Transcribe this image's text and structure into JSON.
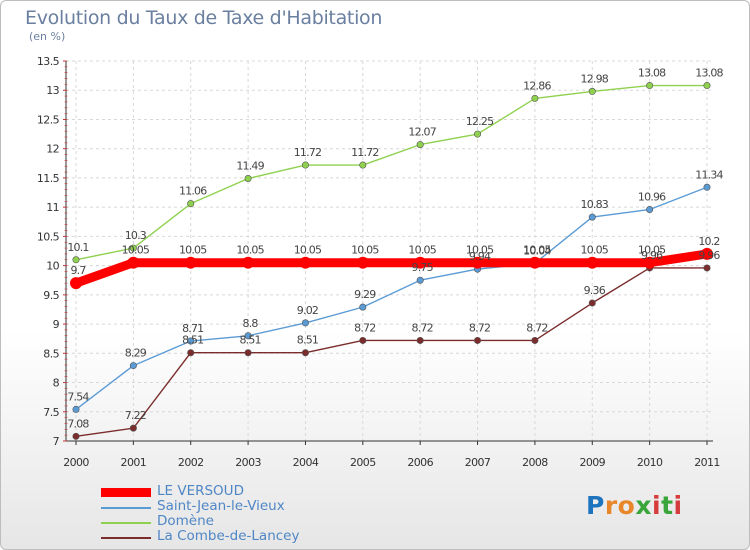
{
  "title": "Evolution du Taux de Taxe d'Habitation",
  "subtitle": "(en %)",
  "logo": {
    "letters": [
      "P",
      "r",
      "o",
      "x",
      "i",
      "t",
      "i"
    ],
    "colors": [
      "#1e73be",
      "#e8862b",
      "#e8862b",
      "#3aa53a",
      "#d63c3c",
      "#3aa53a",
      "#d63c3c"
    ]
  },
  "chart_data": {
    "type": "line",
    "title": "Evolution du Taux de Taxe d'Habitation",
    "ylabel": "(en %)",
    "xlabel": "",
    "x": [
      "2000",
      "2001",
      "2002",
      "2003",
      "2004",
      "2005",
      "2006",
      "2007",
      "2008",
      "2009",
      "2010",
      "2011"
    ],
    "ylim": [
      7,
      13.5
    ],
    "yticks": [
      "7",
      "7.5",
      "8",
      "8.5",
      "9",
      "9.5",
      "10",
      "10.5",
      "11",
      "11.5",
      "12",
      "12.5",
      "13",
      "13.5"
    ],
    "legend_position": "bottom-left",
    "series": [
      {
        "name": "LE VERSOUD",
        "color": "#ff0000",
        "values": [
          9.7,
          10.05,
          10.05,
          10.05,
          10.05,
          10.05,
          10.05,
          10.05,
          10.05,
          10.05,
          10.05,
          10.2
        ],
        "labels": [
          "9.7",
          "10.05",
          "10.05",
          "10.05",
          "10.05",
          "10.05",
          "10.05",
          "10.05",
          "10.05",
          "10.05",
          "10.05",
          "10.2"
        ]
      },
      {
        "name": "Saint-Jean-le-Vieux",
        "color": "#5b9bd5",
        "values": [
          7.54,
          8.29,
          8.71,
          8.8,
          9.02,
          9.29,
          9.75,
          9.94,
          10.04,
          10.83,
          10.96,
          11.34
        ],
        "labels": [
          "7.54",
          "8.29",
          "8.71",
          "8.8",
          "9.02",
          "9.29",
          "9.75",
          "9.94",
          "10.04",
          "10.83",
          "10.96",
          "11.34"
        ]
      },
      {
        "name": "Domène",
        "color": "#8fd14f",
        "values": [
          10.1,
          10.3,
          11.06,
          11.49,
          11.72,
          11.72,
          12.07,
          12.25,
          12.86,
          12.98,
          13.08,
          13.08
        ],
        "labels": [
          "10.1",
          "10.3",
          "11.06",
          "11.49",
          "11.72",
          "11.72",
          "12.07",
          "12.25",
          "12.86",
          "12.98",
          "13.08",
          "13.08"
        ]
      },
      {
        "name": "La Combe-de-Lancey",
        "color": "#7b2c2c",
        "values": [
          7.08,
          7.22,
          8.51,
          8.51,
          8.51,
          8.72,
          8.72,
          8.72,
          8.72,
          9.36,
          9.96,
          9.96
        ],
        "labels": [
          "7.08",
          "7.22",
          "8.51",
          "8.51",
          "8.51",
          "8.72",
          "8.72",
          "8.72",
          "8.72",
          "9.36",
          "9.96",
          "9.96"
        ]
      }
    ]
  }
}
